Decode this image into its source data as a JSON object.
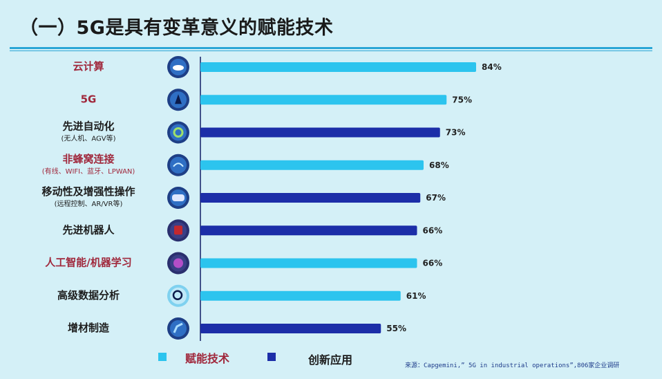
{
  "title": "（一）5G是具有变革意义的赋能技术",
  "chart_data": {
    "type": "bar",
    "orientation": "horizontal",
    "legend": [
      {
        "name": "赋能技术",
        "color": "#2cc4ee"
      },
      {
        "name": "创新应用",
        "color": "#1c2ea8"
      }
    ],
    "categories": [
      {
        "label": "云计算",
        "sub": "",
        "value": 84,
        "value_label": "84%",
        "type": "赋能技术",
        "label_color": "#a0283c",
        "icon": "cloud-icon"
      },
      {
        "label": "5G",
        "sub": "",
        "value": 75,
        "value_label": "75%",
        "type": "赋能技术",
        "label_color": "#a0283c",
        "icon": "antenna-icon"
      },
      {
        "label": "先进自动化",
        "sub": "(无人机、AGV等)",
        "value": 73,
        "value_label": "73%",
        "type": "创新应用",
        "label_color": "#1d1d1d",
        "icon": "gears-icon"
      },
      {
        "label": "非蜂窝连接",
        "sub": "(有线、WIFI、蓝牙、LPWAN)",
        "value": 68,
        "value_label": "68%",
        "type": "赋能技术",
        "label_color": "#a0283c",
        "icon": "wifi-icon"
      },
      {
        "label": "移动性及增强性操作",
        "sub": "(远程控制、AR/VR等)",
        "value": 67,
        "value_label": "67%",
        "type": "创新应用",
        "label_color": "#1d1d1d",
        "icon": "vr-headset-icon"
      },
      {
        "label": "先进机器人",
        "sub": "",
        "value": 66,
        "value_label": "66%",
        "type": "创新应用",
        "label_color": "#1d1d1d",
        "icon": "robot-icon"
      },
      {
        "label": "人工智能/机器学习",
        "sub": "",
        "value": 66,
        "value_label": "66%",
        "type": "赋能技术",
        "label_color": "#a0283c",
        "icon": "brain-icon"
      },
      {
        "label": "高级数据分析",
        "sub": "",
        "value": 61,
        "value_label": "61%",
        "type": "赋能技术",
        "label_color": "#1d1d1d",
        "icon": "magnifier-icon"
      },
      {
        "label": "增材制造",
        "sub": "",
        "value": 55,
        "value_label": "55%",
        "type": "创新应用",
        "label_color": "#1d1d1d",
        "icon": "robot-arm-icon"
      }
    ]
  },
  "source": "来源：Capgemini,” 5G in industrial operations”,806家企业调研"
}
